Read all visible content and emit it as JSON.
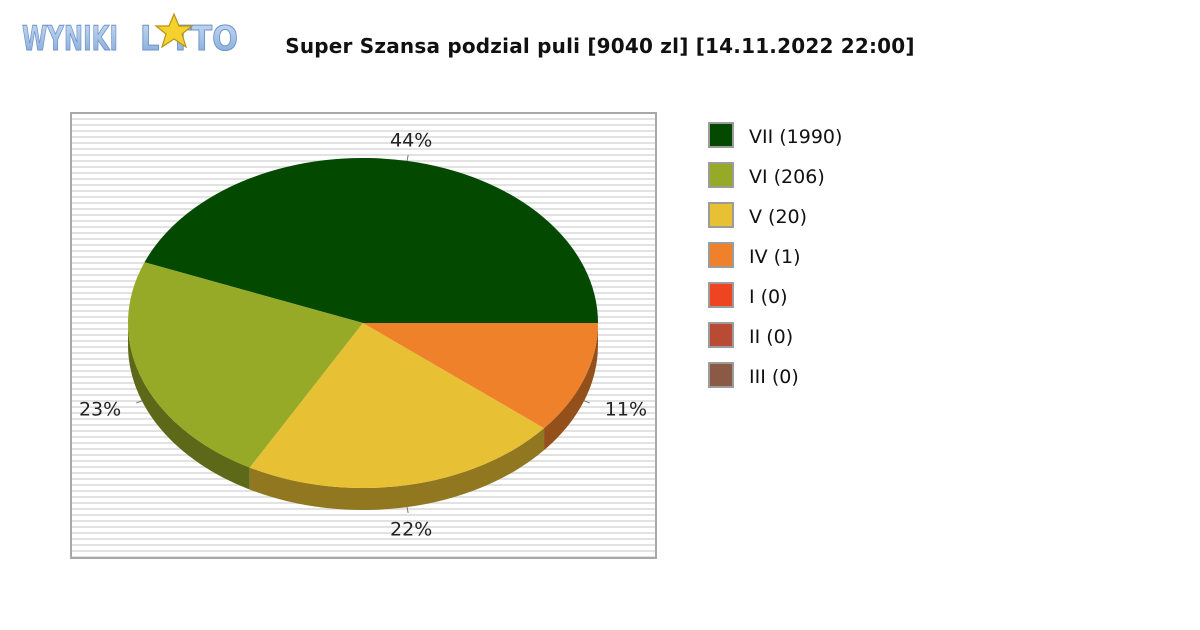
{
  "header": {
    "logo_text": "WYNIKI LOTTO",
    "title": "Super Szansa podzial puli [9040 zl] [14.11.2022 22:00]"
  },
  "chart_data": {
    "type": "pie",
    "title": "Super Szansa podzial puli [9040 zl] [14.11.2022 22:00]",
    "legend_position": "right",
    "three_d": true,
    "slices": [
      {
        "name": "VII",
        "count": 1990,
        "legend": "VII (1990)",
        "percent_label": "44%",
        "value": 0.44,
        "color": "#034a00"
      },
      {
        "name": "VI",
        "count": 206,
        "legend": "VI (206)",
        "percent_label": "23%",
        "value": 0.23,
        "color": "#96aa27"
      },
      {
        "name": "V",
        "count": 20,
        "legend": "V (20)",
        "percent_label": "22%",
        "value": 0.22,
        "color": "#e8c033"
      },
      {
        "name": "IV",
        "count": 1,
        "legend": "IV (1)",
        "percent_label": "11%",
        "value": 0.11,
        "color": "#ef812a"
      },
      {
        "name": "I",
        "count": 0,
        "legend": "I (0)",
        "percent_label": "",
        "value": 0,
        "color": "#ee4422"
      },
      {
        "name": "II",
        "count": 0,
        "legend": "II (0)",
        "percent_label": "",
        "value": 0,
        "color": "#b94a33"
      },
      {
        "name": "III",
        "count": 0,
        "legend": "III (0)",
        "percent_label": "",
        "value": 0,
        "color": "#8a5a44"
      }
    ]
  }
}
